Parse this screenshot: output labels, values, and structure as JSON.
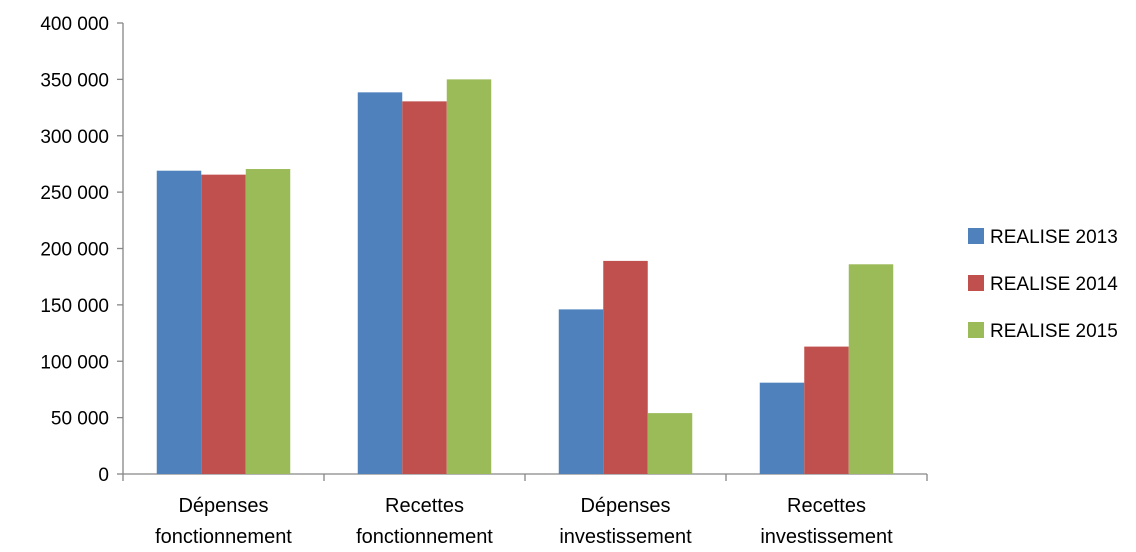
{
  "chart_data": {
    "type": "bar",
    "title": "",
    "xlabel": "",
    "ylabel": "",
    "ylim": [
      0,
      400000
    ],
    "y_ticks": [
      {
        "value": 0,
        "label": "0"
      },
      {
        "value": 50000,
        "label": "50 000"
      },
      {
        "value": 100000,
        "label": "100 000"
      },
      {
        "value": 150000,
        "label": "150 000"
      },
      {
        "value": 200000,
        "label": "200 000"
      },
      {
        "value": 250000,
        "label": "250 000"
      },
      {
        "value": 300000,
        "label": "300 000"
      },
      {
        "value": 350000,
        "label": "350 000"
      },
      {
        "value": 400000,
        "label": "400 000"
      }
    ],
    "categories": [
      [
        "Dépenses",
        "fonctionnement"
      ],
      [
        "Recettes",
        "fonctionnement"
      ],
      [
        "Dépenses",
        "investissement"
      ],
      [
        "Recettes",
        "investissement"
      ]
    ],
    "series": [
      {
        "name": "REALISE 2013",
        "color": "#4F81BD",
        "values": [
          269000,
          338500,
          146000,
          81000
        ]
      },
      {
        "name": "REALISE 2014",
        "color": "#C0504D",
        "values": [
          265500,
          330500,
          189000,
          113000
        ]
      },
      {
        "name": "REALISE 2015",
        "color": "#9BBB59",
        "values": [
          270500,
          350000,
          54000,
          186000
        ]
      }
    ],
    "grid": false,
    "legend_position": "right"
  }
}
